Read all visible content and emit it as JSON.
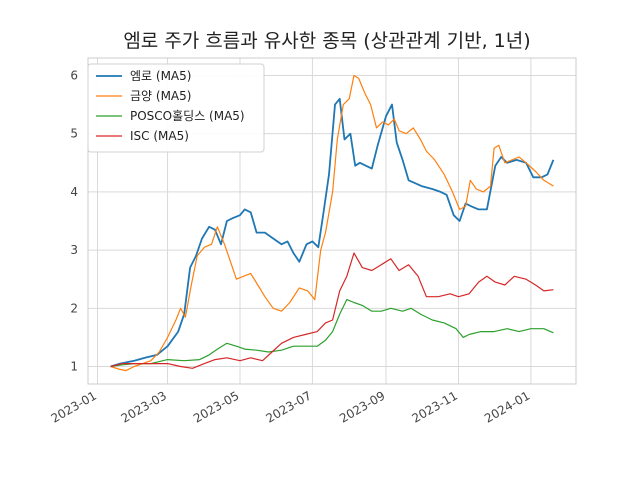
{
  "colors": {
    "grid": "#d9d9d9",
    "frame": "#cccccc",
    "text": "#333333"
  },
  "chart_data": {
    "type": "line",
    "title": "엠로 주가 흐름과 유사한 종목 (상관관계 기반, 1년)",
    "xlabel": "",
    "ylabel": "",
    "x_axis": {
      "type": "date",
      "range": [
        "2022-12-24",
        "2024-02-08"
      ],
      "ticks": [
        "2023-01-01",
        "2023-03-01",
        "2023-05-01",
        "2023-07-01",
        "2023-09-01",
        "2023-11-01",
        "2024-01-01"
      ],
      "tick_labels": [
        "2023-01",
        "2023-03",
        "2023-05",
        "2023-07",
        "2023-09",
        "2023-11",
        "2024-01"
      ]
    },
    "ylim": [
      0.7,
      6.3
    ],
    "yticks": [
      1,
      2,
      3,
      4,
      5,
      6
    ],
    "grid": true,
    "legend": "top-left",
    "series": [
      {
        "name": "엠로 (MA5)",
        "color": "#1f77b4",
        "points": [
          [
            "2023-01-12",
            1.0
          ],
          [
            "2023-01-20",
            1.05
          ],
          [
            "2023-02-01",
            1.1
          ],
          [
            "2023-02-10",
            1.15
          ],
          [
            "2023-02-20",
            1.2
          ],
          [
            "2023-03-01",
            1.35
          ],
          [
            "2023-03-10",
            1.6
          ],
          [
            "2023-03-15",
            1.9
          ],
          [
            "2023-03-20",
            2.7
          ],
          [
            "2023-03-25",
            2.9
          ],
          [
            "2023-03-30",
            3.2
          ],
          [
            "2023-04-05",
            3.4
          ],
          [
            "2023-04-10",
            3.35
          ],
          [
            "2023-04-15",
            3.1
          ],
          [
            "2023-04-20",
            3.5
          ],
          [
            "2023-04-25",
            3.55
          ],
          [
            "2023-05-01",
            3.6
          ],
          [
            "2023-05-05",
            3.7
          ],
          [
            "2023-05-10",
            3.65
          ],
          [
            "2023-05-15",
            3.3
          ],
          [
            "2023-05-22",
            3.3
          ],
          [
            "2023-05-29",
            3.2
          ],
          [
            "2023-06-05",
            3.1
          ],
          [
            "2023-06-10",
            3.15
          ],
          [
            "2023-06-15",
            2.95
          ],
          [
            "2023-06-20",
            2.8
          ],
          [
            "2023-06-26",
            3.1
          ],
          [
            "2023-07-01",
            3.15
          ],
          [
            "2023-07-06",
            3.05
          ],
          [
            "2023-07-10",
            3.6
          ],
          [
            "2023-07-15",
            4.3
          ],
          [
            "2023-07-20",
            5.5
          ],
          [
            "2023-07-24",
            5.6
          ],
          [
            "2023-07-28",
            4.9
          ],
          [
            "2023-08-02",
            5.0
          ],
          [
            "2023-08-06",
            4.45
          ],
          [
            "2023-08-10",
            4.5
          ],
          [
            "2023-08-15",
            4.45
          ],
          [
            "2023-08-20",
            4.4
          ],
          [
            "2023-08-25",
            4.8
          ],
          [
            "2023-09-01",
            5.3
          ],
          [
            "2023-09-06",
            5.5
          ],
          [
            "2023-09-10",
            4.85
          ],
          [
            "2023-09-15",
            4.55
          ],
          [
            "2023-09-20",
            4.2
          ],
          [
            "2023-10-01",
            4.1
          ],
          [
            "2023-10-10",
            4.05
          ],
          [
            "2023-10-17",
            4.0
          ],
          [
            "2023-10-22",
            3.95
          ],
          [
            "2023-10-28",
            3.6
          ],
          [
            "2023-11-02",
            3.5
          ],
          [
            "2023-11-07",
            3.8
          ],
          [
            "2023-11-12",
            3.75
          ],
          [
            "2023-11-18",
            3.7
          ],
          [
            "2023-11-25",
            3.7
          ],
          [
            "2023-12-02",
            4.45
          ],
          [
            "2023-12-07",
            4.6
          ],
          [
            "2023-12-12",
            4.5
          ],
          [
            "2023-12-20",
            4.55
          ],
          [
            "2023-12-28",
            4.5
          ],
          [
            "2024-01-03",
            4.25
          ],
          [
            "2024-01-10",
            4.25
          ],
          [
            "2024-01-15",
            4.3
          ],
          [
            "2024-01-20",
            4.55
          ]
        ]
      },
      {
        "name": "금양 (MA5)",
        "color": "#ff7f0e",
        "points": [
          [
            "2023-01-12",
            1.0
          ],
          [
            "2023-01-20",
            0.95
          ],
          [
            "2023-01-25",
            0.93
          ],
          [
            "2023-02-01",
            1.0
          ],
          [
            "2023-02-08",
            1.05
          ],
          [
            "2023-02-15",
            1.1
          ],
          [
            "2023-02-22",
            1.25
          ],
          [
            "2023-03-01",
            1.5
          ],
          [
            "2023-03-08",
            1.8
          ],
          [
            "2023-03-12",
            2.0
          ],
          [
            "2023-03-16",
            1.85
          ],
          [
            "2023-03-21",
            2.4
          ],
          [
            "2023-03-26",
            2.9
          ],
          [
            "2023-04-01",
            3.05
          ],
          [
            "2023-04-07",
            3.1
          ],
          [
            "2023-04-12",
            3.4
          ],
          [
            "2023-04-18",
            3.1
          ],
          [
            "2023-04-23",
            2.8
          ],
          [
            "2023-04-28",
            2.5
          ],
          [
            "2023-05-04",
            2.55
          ],
          [
            "2023-05-10",
            2.6
          ],
          [
            "2023-05-16",
            2.4
          ],
          [
            "2023-05-22",
            2.2
          ],
          [
            "2023-05-29",
            2.0
          ],
          [
            "2023-06-05",
            1.95
          ],
          [
            "2023-06-12",
            2.1
          ],
          [
            "2023-06-20",
            2.35
          ],
          [
            "2023-06-27",
            2.3
          ],
          [
            "2023-07-03",
            2.15
          ],
          [
            "2023-07-08",
            3.0
          ],
          [
            "2023-07-12",
            3.3
          ],
          [
            "2023-07-18",
            4.0
          ],
          [
            "2023-07-22",
            4.9
          ],
          [
            "2023-07-27",
            5.5
          ],
          [
            "2023-08-01",
            5.6
          ],
          [
            "2023-08-05",
            6.0
          ],
          [
            "2023-08-09",
            5.95
          ],
          [
            "2023-08-14",
            5.7
          ],
          [
            "2023-08-19",
            5.5
          ],
          [
            "2023-08-24",
            5.1
          ],
          [
            "2023-08-29",
            5.2
          ],
          [
            "2023-09-03",
            5.15
          ],
          [
            "2023-09-08",
            5.25
          ],
          [
            "2023-09-12",
            5.05
          ],
          [
            "2023-09-18",
            5.0
          ],
          [
            "2023-09-24",
            5.1
          ],
          [
            "2023-09-30",
            4.9
          ],
          [
            "2023-10-05",
            4.7
          ],
          [
            "2023-10-12",
            4.55
          ],
          [
            "2023-10-20",
            4.3
          ],
          [
            "2023-10-27",
            4.0
          ],
          [
            "2023-11-02",
            3.7
          ],
          [
            "2023-11-07",
            3.75
          ],
          [
            "2023-11-11",
            4.2
          ],
          [
            "2023-11-16",
            4.05
          ],
          [
            "2023-11-22",
            4.0
          ],
          [
            "2023-11-28",
            4.1
          ],
          [
            "2023-12-01",
            4.75
          ],
          [
            "2023-12-05",
            4.8
          ],
          [
            "2023-12-10",
            4.5
          ],
          [
            "2023-12-16",
            4.55
          ],
          [
            "2023-12-22",
            4.6
          ],
          [
            "2023-12-28",
            4.5
          ],
          [
            "2024-01-05",
            4.35
          ],
          [
            "2024-01-12",
            4.2
          ],
          [
            "2024-01-20",
            4.1
          ]
        ]
      },
      {
        "name": "POSCO홀딩스 (MA5)",
        "color": "#2ca02c",
        "points": [
          [
            "2023-01-12",
            1.0
          ],
          [
            "2023-01-22",
            1.03
          ],
          [
            "2023-02-01",
            1.05
          ],
          [
            "2023-02-15",
            1.05
          ],
          [
            "2023-03-01",
            1.12
          ],
          [
            "2023-03-15",
            1.1
          ],
          [
            "2023-03-28",
            1.12
          ],
          [
            "2023-04-05",
            1.2
          ],
          [
            "2023-04-12",
            1.3
          ],
          [
            "2023-04-20",
            1.4
          ],
          [
            "2023-04-28",
            1.35
          ],
          [
            "2023-05-05",
            1.3
          ],
          [
            "2023-05-15",
            1.28
          ],
          [
            "2023-05-25",
            1.25
          ],
          [
            "2023-06-05",
            1.28
          ],
          [
            "2023-06-15",
            1.35
          ],
          [
            "2023-06-25",
            1.35
          ],
          [
            "2023-07-05",
            1.35
          ],
          [
            "2023-07-12",
            1.45
          ],
          [
            "2023-07-18",
            1.6
          ],
          [
            "2023-07-24",
            1.9
          ],
          [
            "2023-07-30",
            2.15
          ],
          [
            "2023-08-05",
            2.1
          ],
          [
            "2023-08-12",
            2.05
          ],
          [
            "2023-08-20",
            1.95
          ],
          [
            "2023-08-28",
            1.95
          ],
          [
            "2023-09-05",
            2.0
          ],
          [
            "2023-09-15",
            1.95
          ],
          [
            "2023-09-22",
            2.0
          ],
          [
            "2023-09-30",
            1.9
          ],
          [
            "2023-10-10",
            1.8
          ],
          [
            "2023-10-20",
            1.75
          ],
          [
            "2023-10-30",
            1.65
          ],
          [
            "2023-11-05",
            1.5
          ],
          [
            "2023-11-10",
            1.55
          ],
          [
            "2023-11-20",
            1.6
          ],
          [
            "2023-12-01",
            1.6
          ],
          [
            "2023-12-12",
            1.65
          ],
          [
            "2023-12-22",
            1.6
          ],
          [
            "2024-01-01",
            1.65
          ],
          [
            "2024-01-12",
            1.65
          ],
          [
            "2024-01-20",
            1.58
          ]
        ]
      },
      {
        "name": "ISC (MA5)",
        "color": "#d62728",
        "points": [
          [
            "2023-01-12",
            1.0
          ],
          [
            "2023-01-22",
            1.05
          ],
          [
            "2023-02-01",
            1.05
          ],
          [
            "2023-02-15",
            1.05
          ],
          [
            "2023-03-01",
            1.05
          ],
          [
            "2023-03-12",
            1.0
          ],
          [
            "2023-03-22",
            0.97
          ],
          [
            "2023-04-01",
            1.05
          ],
          [
            "2023-04-10",
            1.12
          ],
          [
            "2023-04-20",
            1.15
          ],
          [
            "2023-05-01",
            1.1
          ],
          [
            "2023-05-10",
            1.15
          ],
          [
            "2023-05-20",
            1.1
          ],
          [
            "2023-05-28",
            1.25
          ],
          [
            "2023-06-05",
            1.4
          ],
          [
            "2023-06-15",
            1.5
          ],
          [
            "2023-06-25",
            1.55
          ],
          [
            "2023-07-05",
            1.6
          ],
          [
            "2023-07-12",
            1.75
          ],
          [
            "2023-07-18",
            1.8
          ],
          [
            "2023-07-24",
            2.3
          ],
          [
            "2023-07-30",
            2.55
          ],
          [
            "2023-08-05",
            2.95
          ],
          [
            "2023-08-12",
            2.7
          ],
          [
            "2023-08-20",
            2.65
          ],
          [
            "2023-08-28",
            2.75
          ],
          [
            "2023-09-05",
            2.85
          ],
          [
            "2023-09-12",
            2.65
          ],
          [
            "2023-09-20",
            2.75
          ],
          [
            "2023-09-28",
            2.55
          ],
          [
            "2023-10-05",
            2.2
          ],
          [
            "2023-10-15",
            2.2
          ],
          [
            "2023-10-25",
            2.25
          ],
          [
            "2023-11-01",
            2.2
          ],
          [
            "2023-11-10",
            2.25
          ],
          [
            "2023-11-18",
            2.45
          ],
          [
            "2023-11-25",
            2.55
          ],
          [
            "2023-12-02",
            2.45
          ],
          [
            "2023-12-10",
            2.4
          ],
          [
            "2023-12-18",
            2.55
          ],
          [
            "2023-12-28",
            2.5
          ],
          [
            "2024-01-05",
            2.4
          ],
          [
            "2024-01-12",
            2.3
          ],
          [
            "2024-01-20",
            2.32
          ]
        ]
      }
    ]
  }
}
